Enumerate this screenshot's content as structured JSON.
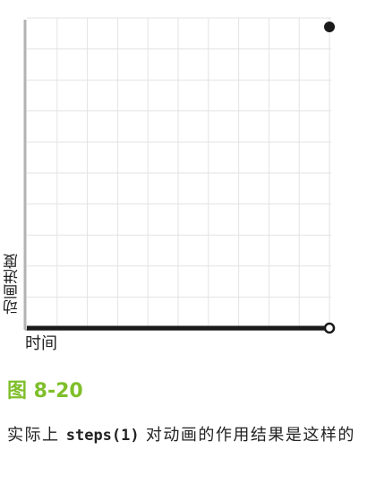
{
  "chart_data": {
    "type": "line",
    "xlabel": "时间",
    "ylabel": "动画进度",
    "xlim": [
      0,
      1
    ],
    "ylim": [
      0,
      1
    ],
    "grid": true,
    "series": [
      {
        "segments": [
          {
            "x": [
              0,
              1
            ],
            "y": [
              0,
              0
            ]
          }
        ],
        "points": [
          {
            "x": 1,
            "y": 1,
            "style": "filled"
          },
          {
            "x": 1,
            "y": 0,
            "style": "hollow"
          }
        ]
      }
    ]
  },
  "figure": {
    "label": "图 8-20",
    "caption_before": "实际上 ",
    "caption_code": "steps(1)",
    "caption_after": " 对动画的作用结果是这样的"
  }
}
